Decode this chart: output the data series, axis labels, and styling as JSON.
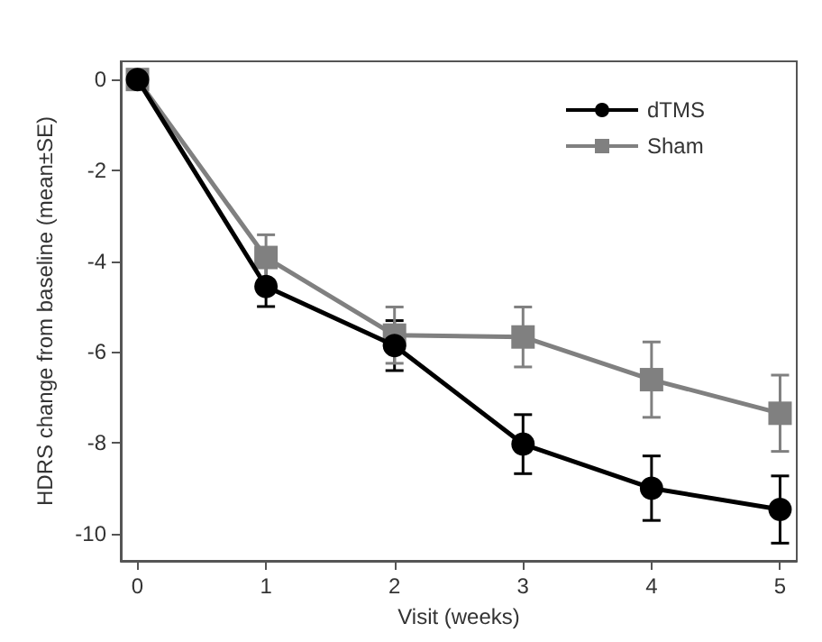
{
  "chart_data": {
    "type": "line",
    "xlabel": "Visit (weeks)",
    "ylabel": "HDRS change from baseline (mean±SE)",
    "x": [
      0,
      1,
      2,
      3,
      4,
      5
    ],
    "xlim": [
      -0.13,
      5.13
    ],
    "xticks": [
      0,
      1,
      2,
      3,
      4,
      5
    ],
    "ylim": [
      -10.6,
      0.4
    ],
    "yticks": [
      0,
      -2,
      -4,
      -6,
      -8,
      -10
    ],
    "grid": false,
    "legend": "top right",
    "line_style": "solid",
    "series": [
      {
        "name": "dTMS",
        "color": "#000000",
        "marker": "circle",
        "values": [
          0,
          -4.56,
          -5.86,
          -8.03,
          -9.0,
          -9.47
        ],
        "errors": [
          null,
          0.44,
          0.55,
          0.65,
          0.71,
          0.74
        ]
      },
      {
        "name": "Sham",
        "color": "#808080",
        "marker": "square",
        "values": [
          0,
          -3.92,
          -5.63,
          -5.67,
          -6.61,
          -7.35
        ],
        "errors": [
          null,
          0.5,
          0.62,
          0.66,
          0.83,
          0.84
        ]
      }
    ]
  }
}
